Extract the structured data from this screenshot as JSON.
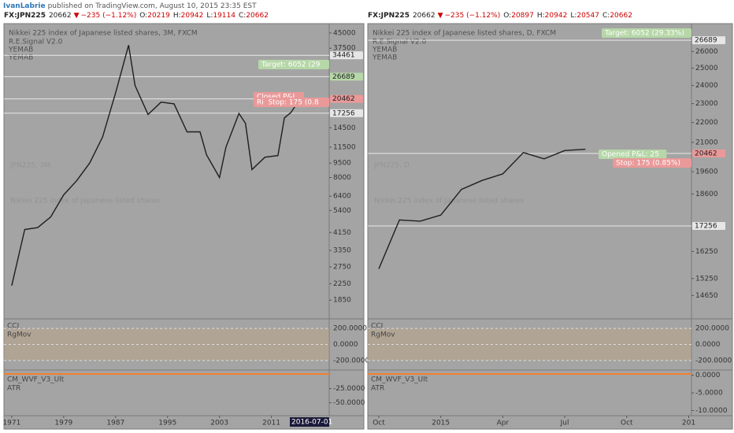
{
  "header": {
    "author": "IvanLabrie",
    "published": "published on TradingView.com, August 10, 2015 23:35 EST"
  },
  "panels": [
    {
      "symbol": "FX:JPN225",
      "last": 20662,
      "arrow": "▼",
      "change": "−235 (−1.12%)",
      "ohlc": [
        {
          "label": "O:",
          "value": 20219
        },
        {
          "label": "H:",
          "value": 20942
        },
        {
          "label": "L:",
          "value": 19114
        },
        {
          "label": "C:",
          "value": 20662
        }
      ],
      "title": "Nikkei 225 index of Japanese listed shares, 3M, FXCM",
      "studies": [
        "R.E.Signal V2.0",
        "YEMAB",
        "YEMAB"
      ],
      "watermark": "JPN225, 3M",
      "watermark_sub": "Nikkei 225 index of Japanese listed shares",
      "log": true,
      "ylim": [
        1550,
        48000
      ],
      "yticks": [
        45000,
        37500,
        14500,
        11500,
        9500,
        8000,
        6400,
        5400,
        4150,
        3350,
        2750,
        2250,
        1850
      ],
      "tags": [
        {
          "value": 34461,
          "color": "#e6e6e6"
        },
        {
          "value": 26689,
          "color": "#b6d7a8"
        },
        {
          "value": 20462,
          "color": "#ea9999"
        },
        {
          "value": 17256,
          "color": "#e6e6e6"
        }
      ],
      "notes": [
        {
          "text": "Target: 6052 (29",
          "color": "#b6d7a8"
        },
        {
          "text": "Closed P&L",
          "color": "#ea9999"
        },
        {
          "text": "Ri  Stop: 175 (0.8",
          "color": "#ea9999"
        }
      ],
      "xlim": [
        1969.8,
        2019.9
      ],
      "xticks": [
        1971,
        1979,
        1987,
        1995,
        2003,
        2011
      ],
      "cursor_date": "2016-07-01",
      "x": [
        1971,
        1973,
        1975,
        1977,
        1979,
        1981,
        1983,
        1985,
        1987,
        1989,
        1990,
        1992,
        1994,
        1996,
        1998,
        2000,
        2001,
        2003,
        2004,
        2006,
        2007,
        2008,
        2010,
        2012,
        2013,
        2014,
        2015.5
      ],
      "closes": [
        2200,
        4300,
        4400,
        5000,
        6500,
        7700,
        9500,
        13000,
        22000,
        38900,
        24000,
        17000,
        19700,
        19300,
        13800,
        13800,
        10500,
        8000,
        11500,
        17200,
        15300,
        8800,
        10200,
        10400,
        16300,
        17400,
        20662
      ],
      "cci_label": "CCI",
      "cci_sub": "RgMov",
      "cci_ylim": [
        -300,
        300
      ],
      "cci_ticks": [
        {
          "value": 200,
          "label": "200.0000"
        },
        {
          "value": 0,
          "label": "0.0000"
        },
        {
          "value": -200,
          "label": "-200.0000"
        }
      ],
      "wvf_label": "CM_WVF_V3_Ult",
      "atr": "ATR",
      "wvf_ylim": [
        -70,
        5
      ],
      "wvf_ticks": [
        {
          "value": -25,
          "label": "-25.0000"
        },
        {
          "value": -50,
          "label": "-50.0000"
        }
      ]
    },
    {
      "symbol": "FX:JPN225",
      "last": 20662,
      "arrow": "▼",
      "change": "−235 (−1.12%)",
      "ohlc": [
        {
          "label": "O:",
          "value": 20897
        },
        {
          "label": "H:",
          "value": 20942
        },
        {
          "label": "L:",
          "value": 20547
        },
        {
          "label": "C:",
          "value": 20662
        }
      ],
      "title": "Nikkei 225 index of Japanese listed shares, D, FXCM",
      "studies": [
        "R.E.Signal V2.0",
        "YEMAB",
        "YEMAB"
      ],
      "watermark": "JPN225, D",
      "watermark_sub": "Nikkei 225 index of Japanese listed shares",
      "log": true,
      "ylim": [
        14000,
        27500
      ],
      "yticks": [
        26000,
        25000,
        24000,
        23000,
        22000,
        21000,
        19600,
        18600,
        16250,
        15250,
        14650
      ],
      "tags": [
        {
          "value": 26689,
          "color": "#e6e6e6"
        },
        {
          "value": 20462,
          "color": "#ea9999"
        },
        {
          "value": 17256,
          "color": "#e6e6e6"
        }
      ],
      "notes": [
        {
          "text": "Target: 6052 (29.33%)",
          "color": "#b6d7a8"
        },
        {
          "text": "Opened P&L: 25",
          "color": "#b6d7a8"
        },
        {
          "text": "Stop: 175 (0.85%)",
          "color": "#ea9999"
        }
      ],
      "xlim": [
        "2014-09-15",
        "2016-01-05"
      ],
      "xticks": [
        {
          "value": "2014-10",
          "label": "Oct"
        },
        {
          "value": "2015-01",
          "label": "2015"
        },
        {
          "value": "2015-04",
          "label": "Apr"
        },
        {
          "value": "2015-07",
          "label": "Jul"
        },
        {
          "value": "2015-10",
          "label": "Oct"
        },
        {
          "value": "2016-01",
          "label": "201"
        }
      ],
      "x": [
        "2014-10",
        "2014-11",
        "2014-12",
        "2015-01",
        "2015-02",
        "2015-03",
        "2015-04",
        "2015-05",
        "2015-06",
        "2015-07",
        "2015-08"
      ],
      "closes": [
        15600,
        17500,
        17450,
        17700,
        18800,
        19200,
        19500,
        20500,
        20200,
        20600,
        20662
      ],
      "cci_label": "CCI",
      "cci_sub": "RgMov",
      "cci_ylim": [
        -300,
        300
      ],
      "cci_ticks": [
        {
          "value": 200,
          "label": "200.0000"
        },
        {
          "value": 0,
          "label": "0.0000"
        },
        {
          "value": -200,
          "label": "-200.0000"
        }
      ],
      "wvf_label": "CM_WVF_V3_Ult",
      "atr": "ATR",
      "wvf_ylim": [
        -11,
        1
      ],
      "wvf_ticks": [
        {
          "value": 0,
          "label": "0.0000"
        },
        {
          "value": -5,
          "label": "-5.0000"
        },
        {
          "value": -10,
          "label": "-10.0000"
        }
      ]
    }
  ]
}
